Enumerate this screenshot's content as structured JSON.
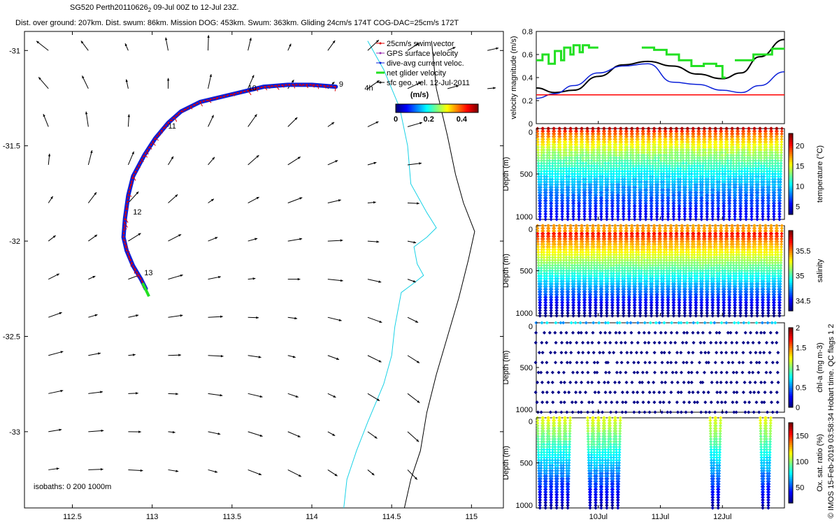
{
  "header": {
    "title": "SG520 Perth20110626",
    "title_sub": "2",
    "title_rest": " 09-Jul 00Z to 12-Jul 23Z.",
    "subtitle": "Dist. over ground: 207km. Dist. swum: 86km. Mission DOG: 453km. Swum: 363km. Gliding 24cm/s 174T COG-DAC=25cm/s 172T"
  },
  "side_note": "© IMOS 15-Feb-2019 03:58:34 Hobart time. QC flags 1  2",
  "colors": {
    "swim": "#e00000",
    "gps": "#9a2fb0",
    "dac": "#0a1fd8",
    "net": "#22e022",
    "geo": "#000000",
    "coast_cyan": "#19d2e6",
    "coast_black": "#000000",
    "red_line": "#ff0000"
  },
  "chart_data": [
    {
      "type": "map",
      "name": "glider track map",
      "xticks": [
        "112.5",
        "113",
        "113.5",
        "114",
        "114.5",
        "115"
      ],
      "xtick_values": [
        112.5,
        113,
        113.5,
        114,
        114.5,
        115
      ],
      "yticks": [
        "-31",
        "-31.5",
        "-32",
        "-32.5",
        "-33"
      ],
      "ytick_values": [
        -31,
        -31.5,
        -32,
        -32.5,
        -33
      ],
      "xlim": [
        112.2,
        115.2
      ],
      "ylim": [
        -33.4,
        -30.9
      ],
      "legend": [
        {
          "label": "25cm/s swim vector",
          "color": "#e00000"
        },
        {
          "label": "GPS surface velocity",
          "color": "#9a2fb0"
        },
        {
          "label": "dive-avg current veloc.",
          "color": "#0a1fd8"
        },
        {
          "label": "net glider velocity",
          "color": "#22e022"
        },
        {
          "label": "sfc geo. vel. 12-Jul-2011",
          "color": "#000000"
        }
      ],
      "colorbar": {
        "label": "(m/s)",
        "ticks": [
          "0",
          "0.2",
          "0.4"
        ],
        "range": [
          0,
          0.5
        ]
      },
      "day_labels": [
        {
          "text": "9",
          "lon": 114.17,
          "lat": -31.19
        },
        {
          "text": "10",
          "lon": 113.6,
          "lat": -31.21
        },
        {
          "text": "11",
          "lon": 113.1,
          "lat": -31.41
        },
        {
          "text": "12",
          "lon": 112.88,
          "lat": -31.86
        },
        {
          "text": "13",
          "lon": 112.95,
          "lat": -32.18
        }
      ],
      "extra_label": {
        "text": "4h",
        "lon": 114.33,
        "lat": -31.21
      },
      "track": [
        [
          114.15,
          -31.19
        ],
        [
          114.0,
          -31.18
        ],
        [
          113.85,
          -31.18
        ],
        [
          113.7,
          -31.19
        ],
        [
          113.5,
          -31.23
        ],
        [
          113.3,
          -31.27
        ],
        [
          113.18,
          -31.32
        ],
        [
          113.1,
          -31.38
        ],
        [
          113.02,
          -31.46
        ],
        [
          112.95,
          -31.55
        ],
        [
          112.88,
          -31.66
        ],
        [
          112.85,
          -31.76
        ],
        [
          112.83,
          -31.88
        ],
        [
          112.82,
          -31.98
        ],
        [
          112.84,
          -32.05
        ],
        [
          112.88,
          -32.13
        ],
        [
          112.93,
          -32.2
        ],
        [
          112.96,
          -32.25
        ]
      ],
      "isobaths_label": "isobaths: 0   200   1000m"
    },
    {
      "type": "line",
      "name": "velocity magnitude",
      "ylabel": "velocity magnitude (m/s)",
      "ylim": [
        0,
        0.8
      ],
      "yticks": [
        "0",
        "0.2",
        "0.4",
        "0.6",
        "0.8"
      ],
      "ytick_values": [
        0,
        0.2,
        0.4,
        0.6,
        0.8
      ],
      "xlim": [
        9.0,
        13.0
      ],
      "series": [
        {
          "color": "#000000",
          "x": [
            9.0,
            9.3,
            9.6,
            10.0,
            10.4,
            10.8,
            11.2,
            11.6,
            12.0,
            12.3,
            12.6,
            13.0
          ],
          "values": [
            0.31,
            0.27,
            0.29,
            0.41,
            0.51,
            0.54,
            0.5,
            0.43,
            0.39,
            0.44,
            0.58,
            0.73
          ]
        },
        {
          "color": "#0a1fd8",
          "x": [
            9.0,
            9.3,
            9.6,
            10.0,
            10.4,
            10.8,
            11.2,
            11.6,
            12.0,
            12.3,
            12.6,
            13.0
          ],
          "values": [
            0.22,
            0.26,
            0.33,
            0.44,
            0.5,
            0.52,
            0.36,
            0.34,
            0.29,
            0.27,
            0.33,
            0.45
          ]
        },
        {
          "color": "#ff0000",
          "x": [
            9.0,
            13.0
          ],
          "values": [
            0.25,
            0.25
          ]
        }
      ],
      "green_steps": [
        [
          [
            9.0,
            0.55
          ],
          [
            9.1,
            0.55
          ],
          [
            9.1,
            0.6
          ],
          [
            9.2,
            0.6
          ],
          [
            9.2,
            0.52
          ],
          [
            9.3,
            0.52
          ],
          [
            9.3,
            0.63
          ],
          [
            9.4,
            0.63
          ],
          [
            9.4,
            0.55
          ],
          [
            9.45,
            0.55
          ],
          [
            9.45,
            0.66
          ],
          [
            9.55,
            0.66
          ],
          [
            9.55,
            0.6
          ],
          [
            9.6,
            0.6
          ],
          [
            9.6,
            0.68
          ],
          [
            9.7,
            0.68
          ],
          [
            9.7,
            0.62
          ],
          [
            9.75,
            0.62
          ],
          [
            9.75,
            0.68
          ],
          [
            9.85,
            0.68
          ],
          [
            9.85,
            0.66
          ],
          [
            10.0,
            0.66
          ]
        ],
        [
          [
            10.7,
            0.66
          ],
          [
            10.9,
            0.66
          ],
          [
            10.9,
            0.64
          ],
          [
            11.1,
            0.64
          ],
          [
            11.1,
            0.6
          ],
          [
            11.3,
            0.6
          ],
          [
            11.3,
            0.55
          ],
          [
            11.5,
            0.55
          ],
          [
            11.5,
            0.5
          ],
          [
            11.7,
            0.5
          ],
          [
            11.7,
            0.52
          ],
          [
            11.9,
            0.52
          ],
          [
            11.9,
            0.5
          ],
          [
            12.0,
            0.5
          ],
          [
            12.0,
            0.4
          ],
          [
            12.05,
            0.4
          ]
        ],
        [
          [
            12.2,
            0.55
          ],
          [
            12.5,
            0.55
          ],
          [
            12.5,
            0.6
          ],
          [
            12.8,
            0.6
          ],
          [
            12.8,
            0.65
          ],
          [
            13.0,
            0.65
          ]
        ]
      ]
    },
    {
      "type": "scatter",
      "name": "temperature section",
      "ylabel": "Depth (m)",
      "colorbar_label": "temperature (°C)",
      "yticks": [
        "0",
        "500",
        "1000"
      ],
      "ytick_values": [
        0,
        500,
        1000
      ],
      "ylim": [
        1000,
        0
      ],
      "cbar_ticks": [
        "5",
        "10",
        "15",
        "20"
      ],
      "cbar_values": [
        5,
        10,
        15,
        20
      ],
      "cbar_range": [
        3,
        23
      ]
    },
    {
      "type": "scatter",
      "name": "salinity section",
      "ylabel": "Depth (m)",
      "colorbar_label": "salinity",
      "yticks": [
        "0",
        "500",
        "1000"
      ],
      "ytick_values": [
        0,
        500,
        1000
      ],
      "ylim": [
        1000,
        0
      ],
      "cbar_ticks": [
        "34.5",
        "35",
        "35.5"
      ],
      "cbar_values": [
        34.5,
        35,
        35.5
      ],
      "cbar_range": [
        34.3,
        35.9
      ]
    },
    {
      "type": "scatter",
      "name": "chlorophyll section",
      "ylabel": "Depth (m)",
      "colorbar_label": "chl-a (mg m-3)",
      "yticks": [
        "0",
        "500",
        "1000"
      ],
      "ytick_values": [
        0,
        500,
        1000
      ],
      "ylim": [
        1000,
        0
      ],
      "cbar_ticks": [
        "0",
        "0.5",
        "1",
        "1.5",
        "2"
      ],
      "cbar_values": [
        0,
        0.5,
        1,
        1.5,
        2
      ],
      "cbar_range": [
        0,
        2
      ]
    },
    {
      "type": "scatter",
      "name": "oxygen section",
      "ylabel": "Depth (m)",
      "colorbar_label": "Ox. sat. ratio (%)",
      "yticks": [
        "0",
        "500",
        "1000"
      ],
      "ytick_values": [
        0,
        500,
        1000
      ],
      "ylim": [
        1000,
        0
      ],
      "cbar_ticks": [
        "50",
        "100",
        "150"
      ],
      "cbar_values": [
        50,
        100,
        150
      ],
      "cbar_range": [
        20,
        175
      ],
      "xticks": [
        "10Jul",
        "11Jul",
        "12Jul"
      ],
      "xtick_values": [
        10,
        11,
        12
      ]
    }
  ]
}
